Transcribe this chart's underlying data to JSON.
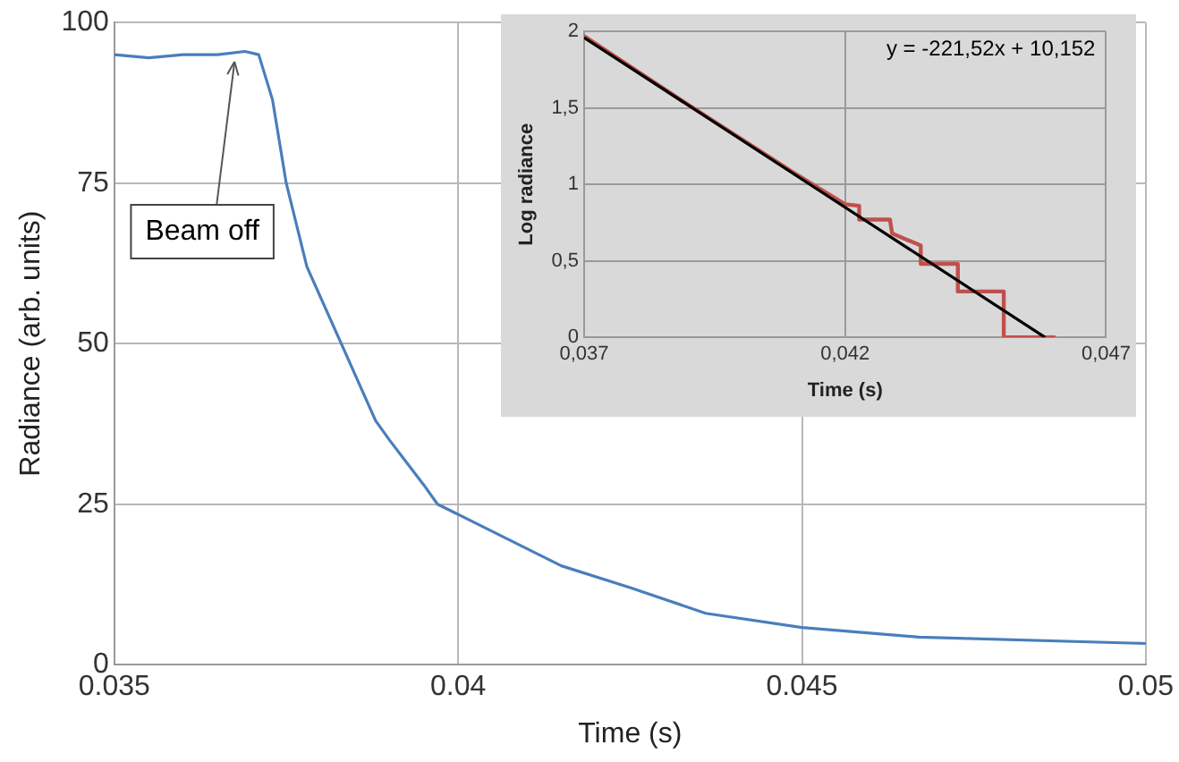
{
  "chart_data": [
    {
      "type": "line",
      "xlabel": "Time (s)",
      "ylabel": "Radiance (arb. units)",
      "x": [
        0.035,
        0.0355,
        0.036,
        0.0365,
        0.0369,
        0.0371,
        0.0373,
        0.0375,
        0.0378,
        0.0383,
        0.0388,
        0.039,
        0.0395,
        0.0397,
        0.04,
        0.0415,
        0.0425,
        0.0436,
        0.045,
        0.0467,
        0.05
      ],
      "series": [
        {
          "color": "#4a7ebb",
          "values": [
            95,
            94.5,
            95,
            95,
            95.5,
            95,
            88,
            75,
            62,
            50,
            38,
            35,
            28,
            25,
            23.4,
            15.4,
            12,
            8,
            5.8,
            4.3,
            3.3
          ]
        }
      ],
      "xlim": [
        0.035,
        0.05
      ],
      "xticks": [
        0.035,
        0.04,
        0.045,
        0.05
      ],
      "ylim": [
        0,
        100
      ],
      "yticks": [
        0,
        25,
        50,
        75,
        100
      ],
      "grid": true,
      "legend": false,
      "marker": "none",
      "annotations": [
        {
          "text": "Beam off",
          "x": 0.0368,
          "y": 95
        }
      ]
    },
    {
      "type": "line",
      "xlabel": "Time (s)",
      "ylabel": "Log radiance",
      "series": [
        {
          "type": "step",
          "color": "#c0504d",
          "x": [
            0.037,
            0.039,
            0.041,
            0.042,
            0.04227,
            0.04227,
            0.04286,
            0.0429,
            0.04345,
            0.04345,
            0.04416,
            0.04416,
            0.04504,
            0.04504,
            0.04603
          ],
          "values": [
            1.97,
            1.52,
            1.08,
            0.87,
            0.86,
            0.77,
            0.77,
            0.68,
            0.6,
            0.48,
            0.48,
            0.3,
            0.3,
            0,
            0
          ]
        },
        {
          "type": "line",
          "color": "#000000",
          "x": [
            0.037,
            0.04583
          ],
          "values": [
            1.96,
            0
          ]
        }
      ],
      "xlim": [
        0.037,
        0.047
      ],
      "xticks": [
        {
          "value": 0.037,
          "label": "0,037"
        },
        {
          "value": 0.042,
          "label": "0,042"
        },
        {
          "value": 0.047,
          "label": "0,047"
        }
      ],
      "ylim": [
        0,
        2
      ],
      "yticks": [
        0,
        {
          "value": 0.5,
          "label": "0,5"
        },
        1,
        {
          "value": 1.5,
          "label": "1,5"
        },
        2
      ],
      "grid": true,
      "legend": false,
      "marker": "none",
      "annotations": [
        "y = -221,52x + 10,152"
      ]
    }
  ]
}
